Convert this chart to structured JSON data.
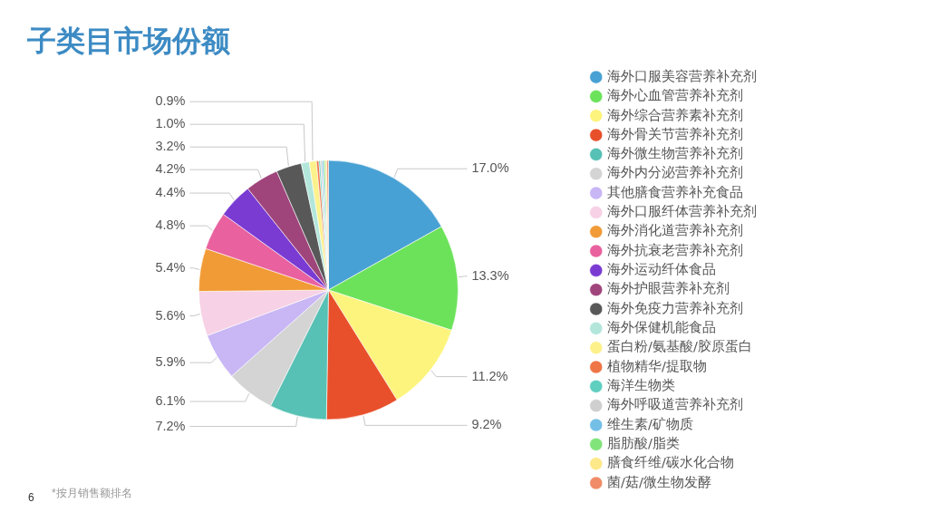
{
  "chart_data": {
    "type": "pie",
    "title": "子类目市场份额",
    "categories": [
      "海外口服美容营养补充剂",
      "海外心血管营养补充剂",
      "海外综合营养素补充剂",
      "海外骨关节营养补充剂",
      "海外微生物营养补充剂",
      "海外内分泌营养补充剂",
      "其他膳食营养补充食品",
      "海外口服纤体营养补充剂",
      "海外消化道营养补充剂",
      "海外抗衰老营养补充剂",
      "海外运动纤体食品",
      "海外护眼营养补充剂",
      "海外免疫力营养补充剂",
      "海外保健机能食品",
      "蛋白粉/氨基酸/胶原蛋白",
      "植物精华/提取物",
      "海洋生物类",
      "海外呼吸道营养补充剂",
      "维生素/矿物质",
      "脂肪酸/脂类",
      "膳食纤维/碳水化合物",
      "菌/菇/微生物发酵"
    ],
    "values": [
      17.0,
      13.3,
      11.2,
      9.2,
      7.2,
      6.1,
      5.9,
      5.6,
      5.4,
      4.8,
      4.4,
      4.2,
      3.2,
      1.0,
      0.9,
      0.3,
      0.2,
      0.2,
      0.2,
      0.2,
      0.2,
      0.2
    ],
    "value_labels": [
      "17.0%",
      "13.3%",
      "11.2%",
      "9.2%",
      "7.2%",
      "6.1%",
      "5.9%",
      "5.6%",
      "5.4%",
      "4.8%",
      "4.4%",
      "4.2%",
      "3.2%",
      "1.0%",
      "0.9%",
      null,
      null,
      null,
      null,
      null,
      null,
      null
    ],
    "colors": [
      "#48a1d4",
      "#6ce25b",
      "#fdf47d",
      "#e8502b",
      "#56c1b4",
      "#d4d4d4",
      "#c8b6f5",
      "#f7d1e5",
      "#f19b36",
      "#e9619f",
      "#7a3bd3",
      "#a0457c",
      "#585858",
      "#b3e6db",
      "#fdf18b",
      "#ef7547",
      "#5fcfc0",
      "#cfcfcf",
      "#74bfe6",
      "#80e47a",
      "#fde98a",
      "#f08c67"
    ],
    "legend": "right",
    "annotations": [
      "*按月销售额排名",
      "6"
    ]
  }
}
